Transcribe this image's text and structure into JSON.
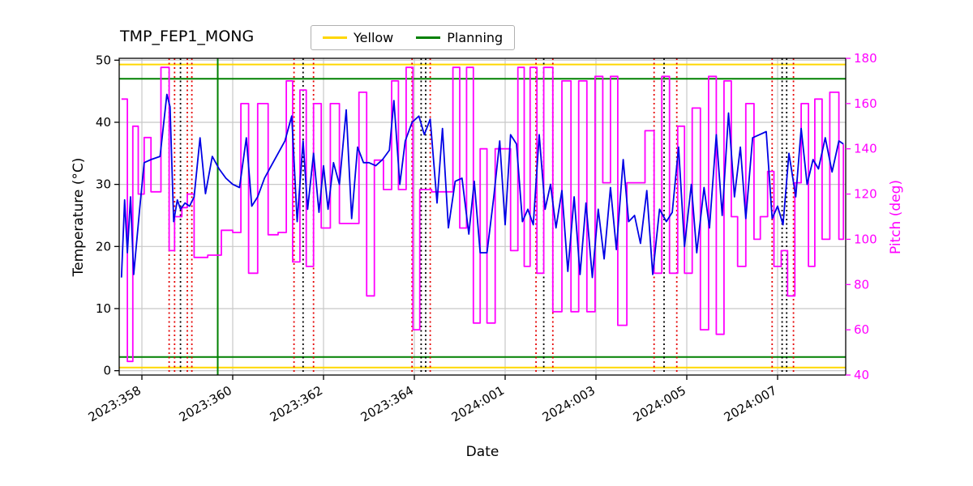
{
  "title": "TMP_FEP1_MONG",
  "xlabel": "Date",
  "ylabel_left": "Temperature (°C)",
  "ylabel_right": "Pitch (deg)",
  "legend": [
    {
      "label": "Yellow",
      "color": "#ffd700"
    },
    {
      "label": "Planning",
      "color": "#008000"
    }
  ],
  "colors": {
    "temperature": "#0000e6",
    "pitch": "#ff00ff",
    "grid": "#c8c8c8",
    "spine": "#000000",
    "right_axis_text": "#ff00ff"
  },
  "chart_data": {
    "type": "line",
    "title": "TMP_FEP1_MONG",
    "xlabel": "Date",
    "ylabel_left": "Temperature (°C)",
    "ylabel_right": "Pitch (deg)",
    "grid": true,
    "xlim": [
      357.5,
      373.5
    ],
    "ylim_left": [
      -0.7,
      50.3
    ],
    "ylim_right": [
      40,
      180
    ],
    "x_ticks": [
      {
        "v": 358,
        "label": "2023:358"
      },
      {
        "v": 360,
        "label": "2023:360"
      },
      {
        "v": 362,
        "label": "2023:362"
      },
      {
        "v": 364,
        "label": "2023:364"
      },
      {
        "v": 366,
        "label": "2024:001"
      },
      {
        "v": 368,
        "label": "2024:003"
      },
      {
        "v": 370,
        "label": "2024:005"
      },
      {
        "v": 372,
        "label": "2024:007"
      }
    ],
    "yticks_left": [
      0,
      10,
      20,
      30,
      40,
      50
    ],
    "yticks_right": [
      40,
      60,
      80,
      100,
      120,
      140,
      160,
      180
    ],
    "hlines": [
      {
        "y": 49.3,
        "color": "#ffd700",
        "style": "solid",
        "width": 2,
        "name": "yellow-upper-limit"
      },
      {
        "y": 0.5,
        "color": "#ffd700",
        "style": "solid",
        "width": 2,
        "name": "yellow-lower-limit"
      },
      {
        "y": 47.0,
        "color": "#008000",
        "style": "solid",
        "width": 2,
        "name": "planning-upper-limit"
      },
      {
        "y": 2.2,
        "color": "#008000",
        "style": "solid",
        "width": 2,
        "name": "planning-lower-limit"
      }
    ],
    "vlines": [
      {
        "x": 359.67,
        "color": "#008000",
        "style": "solid",
        "width": 2
      },
      {
        "x": 358.6,
        "color": "#e60000",
        "style": "dotted",
        "width": 1.8
      },
      {
        "x": 358.72,
        "color": "#e60000",
        "style": "dotted",
        "width": 1.8
      },
      {
        "x": 358.85,
        "color": "#000000",
        "style": "dotted",
        "width": 1.8
      },
      {
        "x": 359.0,
        "color": "#e60000",
        "style": "dotted",
        "width": 1.8
      },
      {
        "x": 359.1,
        "color": "#e60000",
        "style": "dotted",
        "width": 1.8
      },
      {
        "x": 361.35,
        "color": "#e60000",
        "style": "dotted",
        "width": 1.8
      },
      {
        "x": 361.55,
        "color": "#000000",
        "style": "dotted",
        "width": 1.8
      },
      {
        "x": 361.78,
        "color": "#e60000",
        "style": "dotted",
        "width": 1.8
      },
      {
        "x": 363.95,
        "color": "#e60000",
        "style": "dotted",
        "width": 1.8
      },
      {
        "x": 364.15,
        "color": "#000000",
        "style": "dotted",
        "width": 1.8
      },
      {
        "x": 364.25,
        "color": "#000000",
        "style": "dotted",
        "width": 1.8
      },
      {
        "x": 364.35,
        "color": "#e60000",
        "style": "dotted",
        "width": 1.8
      },
      {
        "x": 366.68,
        "color": "#e60000",
        "style": "dotted",
        "width": 1.8
      },
      {
        "x": 366.85,
        "color": "#000000",
        "style": "dotted",
        "width": 1.8
      },
      {
        "x": 367.05,
        "color": "#e60000",
        "style": "dotted",
        "width": 1.8
      },
      {
        "x": 369.28,
        "color": "#e60000",
        "style": "dotted",
        "width": 1.8
      },
      {
        "x": 369.5,
        "color": "#000000",
        "style": "dotted",
        "width": 1.8
      },
      {
        "x": 369.78,
        "color": "#e60000",
        "style": "dotted",
        "width": 1.8
      },
      {
        "x": 371.88,
        "color": "#e60000",
        "style": "dotted",
        "width": 1.8
      },
      {
        "x": 372.1,
        "color": "#000000",
        "style": "dotted",
        "width": 1.8
      },
      {
        "x": 372.2,
        "color": "#000000",
        "style": "dotted",
        "width": 1.8
      },
      {
        "x": 372.35,
        "color": "#e60000",
        "style": "dotted",
        "width": 1.8
      }
    ],
    "series": [
      {
        "name": "Pitch",
        "axis": "right",
        "color": "#ff00ff",
        "interp": "step",
        "width": 1.8,
        "points": [
          [
            357.55,
            162
          ],
          [
            357.68,
            46
          ],
          [
            357.8,
            150
          ],
          [
            357.92,
            120
          ],
          [
            358.05,
            145
          ],
          [
            358.2,
            121
          ],
          [
            358.42,
            176
          ],
          [
            358.6,
            95
          ],
          [
            358.72,
            110
          ],
          [
            358.88,
            114
          ],
          [
            359.0,
            120
          ],
          [
            359.15,
            92
          ],
          [
            359.45,
            93
          ],
          [
            359.75,
            104
          ],
          [
            360.0,
            103
          ],
          [
            360.18,
            160
          ],
          [
            360.35,
            85
          ],
          [
            360.55,
            160
          ],
          [
            360.78,
            102
          ],
          [
            361.0,
            103
          ],
          [
            361.18,
            170
          ],
          [
            361.32,
            90
          ],
          [
            361.48,
            166
          ],
          [
            361.62,
            88
          ],
          [
            361.78,
            160
          ],
          [
            361.95,
            105
          ],
          [
            362.15,
            160
          ],
          [
            362.35,
            107
          ],
          [
            362.6,
            107
          ],
          [
            362.78,
            165
          ],
          [
            362.95,
            75
          ],
          [
            363.12,
            135
          ],
          [
            363.32,
            122
          ],
          [
            363.5,
            170
          ],
          [
            363.65,
            122
          ],
          [
            363.82,
            176
          ],
          [
            363.97,
            60
          ],
          [
            364.12,
            122
          ],
          [
            364.38,
            121
          ],
          [
            364.65,
            121
          ],
          [
            364.85,
            176
          ],
          [
            365.0,
            105
          ],
          [
            365.15,
            176
          ],
          [
            365.3,
            63
          ],
          [
            365.45,
            140
          ],
          [
            365.6,
            63
          ],
          [
            365.78,
            140
          ],
          [
            365.98,
            140
          ],
          [
            366.12,
            95
          ],
          [
            366.28,
            176
          ],
          [
            366.42,
            88
          ],
          [
            366.55,
            176
          ],
          [
            366.7,
            85
          ],
          [
            366.85,
            176
          ],
          [
            367.05,
            68
          ],
          [
            367.25,
            170
          ],
          [
            367.45,
            68
          ],
          [
            367.62,
            170
          ],
          [
            367.8,
            68
          ],
          [
            367.98,
            172
          ],
          [
            368.15,
            125
          ],
          [
            368.32,
            172
          ],
          [
            368.48,
            62
          ],
          [
            368.68,
            125
          ],
          [
            368.9,
            125
          ],
          [
            369.08,
            148
          ],
          [
            369.28,
            85
          ],
          [
            369.45,
            172
          ],
          [
            369.62,
            85
          ],
          [
            369.8,
            150
          ],
          [
            369.95,
            85
          ],
          [
            370.12,
            158
          ],
          [
            370.3,
            60
          ],
          [
            370.48,
            172
          ],
          [
            370.65,
            58
          ],
          [
            370.82,
            170
          ],
          [
            370.98,
            110
          ],
          [
            371.12,
            88
          ],
          [
            371.3,
            160
          ],
          [
            371.48,
            100
          ],
          [
            371.62,
            110
          ],
          [
            371.78,
            130
          ],
          [
            371.92,
            88
          ],
          [
            372.08,
            95
          ],
          [
            372.22,
            75
          ],
          [
            372.38,
            125
          ],
          [
            372.52,
            160
          ],
          [
            372.68,
            88
          ],
          [
            372.82,
            162
          ],
          [
            372.98,
            100
          ],
          [
            373.15,
            165
          ],
          [
            373.35,
            100
          ],
          [
            373.45,
            142
          ]
        ]
      },
      {
        "name": "Temperature",
        "axis": "left",
        "color": "#0000e6",
        "interp": "linear",
        "width": 1.8,
        "points": [
          [
            357.55,
            15
          ],
          [
            357.62,
            27.5
          ],
          [
            357.68,
            19
          ],
          [
            357.75,
            28
          ],
          [
            357.82,
            15.5
          ],
          [
            357.95,
            26
          ],
          [
            358.05,
            33.5
          ],
          [
            358.2,
            34
          ],
          [
            358.4,
            34.5
          ],
          [
            358.55,
            44.5
          ],
          [
            358.62,
            42.5
          ],
          [
            358.7,
            24
          ],
          [
            358.78,
            27.5
          ],
          [
            358.85,
            26
          ],
          [
            358.95,
            27
          ],
          [
            359.05,
            26.5
          ],
          [
            359.15,
            28
          ],
          [
            359.28,
            37.5
          ],
          [
            359.4,
            28.5
          ],
          [
            359.55,
            34.5
          ],
          [
            359.7,
            32.5
          ],
          [
            359.85,
            31
          ],
          [
            360.0,
            30
          ],
          [
            360.15,
            29.5
          ],
          [
            360.3,
            37.5
          ],
          [
            360.42,
            26.5
          ],
          [
            360.55,
            28
          ],
          [
            360.7,
            31
          ],
          [
            360.85,
            33
          ],
          [
            361.0,
            35
          ],
          [
            361.15,
            37
          ],
          [
            361.3,
            41
          ],
          [
            361.42,
            24
          ],
          [
            361.55,
            37
          ],
          [
            361.65,
            26
          ],
          [
            361.78,
            35
          ],
          [
            361.9,
            25.5
          ],
          [
            362.0,
            33
          ],
          [
            362.1,
            26
          ],
          [
            362.22,
            33.5
          ],
          [
            362.35,
            30
          ],
          [
            362.5,
            42
          ],
          [
            362.62,
            24.5
          ],
          [
            362.75,
            36
          ],
          [
            362.88,
            33.5
          ],
          [
            363.0,
            33.5
          ],
          [
            363.15,
            33
          ],
          [
            363.3,
            34
          ],
          [
            363.45,
            35.5
          ],
          [
            363.55,
            43.5
          ],
          [
            363.68,
            30
          ],
          [
            363.8,
            37
          ],
          [
            363.95,
            40
          ],
          [
            364.1,
            41
          ],
          [
            364.22,
            38
          ],
          [
            364.35,
            40.5
          ],
          [
            364.5,
            27
          ],
          [
            364.62,
            39
          ],
          [
            364.75,
            23
          ],
          [
            364.9,
            30.5
          ],
          [
            365.05,
            31
          ],
          [
            365.2,
            22
          ],
          [
            365.32,
            30.5
          ],
          [
            365.45,
            19
          ],
          [
            365.6,
            19
          ],
          [
            365.75,
            28
          ],
          [
            365.88,
            37
          ],
          [
            366.0,
            23.5
          ],
          [
            366.12,
            38
          ],
          [
            366.25,
            36.5
          ],
          [
            366.38,
            24
          ],
          [
            366.5,
            26
          ],
          [
            366.62,
            23.5
          ],
          [
            366.75,
            38
          ],
          [
            366.88,
            26
          ],
          [
            367.0,
            30
          ],
          [
            367.12,
            23
          ],
          [
            367.25,
            29
          ],
          [
            367.38,
            16
          ],
          [
            367.52,
            28
          ],
          [
            367.65,
            15.5
          ],
          [
            367.78,
            27
          ],
          [
            367.92,
            15
          ],
          [
            368.05,
            26
          ],
          [
            368.18,
            18
          ],
          [
            368.32,
            29.5
          ],
          [
            368.45,
            19.5
          ],
          [
            368.6,
            34
          ],
          [
            368.72,
            24
          ],
          [
            368.85,
            25
          ],
          [
            368.98,
            20.5
          ],
          [
            369.12,
            29
          ],
          [
            369.25,
            15.5
          ],
          [
            369.4,
            26
          ],
          [
            369.55,
            24
          ],
          [
            369.68,
            25.5
          ],
          [
            369.82,
            36
          ],
          [
            369.95,
            20
          ],
          [
            370.1,
            30
          ],
          [
            370.22,
            19
          ],
          [
            370.38,
            29.5
          ],
          [
            370.5,
            23
          ],
          [
            370.65,
            38
          ],
          [
            370.78,
            25
          ],
          [
            370.92,
            41.5
          ],
          [
            371.05,
            28
          ],
          [
            371.18,
            36
          ],
          [
            371.3,
            24.5
          ],
          [
            371.45,
            37.5
          ],
          [
            371.6,
            38
          ],
          [
            371.75,
            38.5
          ],
          [
            371.88,
            24.5
          ],
          [
            372.0,
            26.5
          ],
          [
            372.12,
            23.5
          ],
          [
            372.25,
            35
          ],
          [
            372.4,
            28
          ],
          [
            372.52,
            39
          ],
          [
            372.65,
            30
          ],
          [
            372.78,
            34
          ],
          [
            372.9,
            32.5
          ],
          [
            373.05,
            37.5
          ],
          [
            373.2,
            32
          ],
          [
            373.35,
            37
          ],
          [
            373.45,
            36.5
          ]
        ]
      }
    ]
  }
}
